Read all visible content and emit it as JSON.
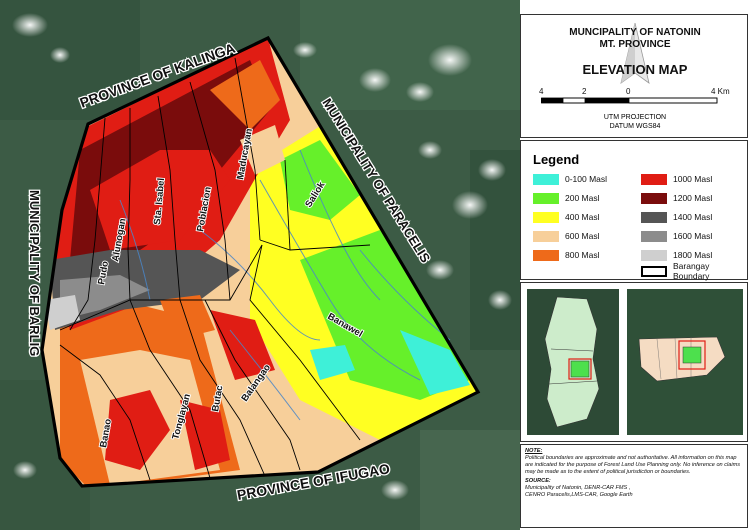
{
  "title": {
    "line1": "MUNCIPALITY OF NATONIN",
    "line2": "MT. PROVINCE",
    "line3": "ELEVATION MAP"
  },
  "scale": {
    "ticks": [
      "4",
      "2",
      "0",
      "4 Km"
    ],
    "projection": "UTM PROJECTION",
    "datum": "DATUM WGS84"
  },
  "legend": {
    "title": "Legend",
    "items": [
      {
        "label": "0-100 Masl",
        "color": "#3ef0d8"
      },
      {
        "label": "200 Masl",
        "color": "#66f02a"
      },
      {
        "label": "400 Masl",
        "color": "#ffff22"
      },
      {
        "label": "600 Masl",
        "color": "#f7cf9a"
      },
      {
        "label": "800 Masl",
        "color": "#ee6a1a"
      },
      {
        "label": "1000 Masl",
        "color": "#e01d14"
      },
      {
        "label": "1200 Masl",
        "color": "#7a0c0c"
      },
      {
        "label": "1400 Masl",
        "color": "#555555"
      },
      {
        "label": "1600 Masl",
        "color": "#8c8c8c"
      },
      {
        "label": "1800 Masl",
        "color": "#cfcfcf"
      },
      {
        "label": "Barangay Boundary",
        "color": "#ffffff"
      }
    ]
  },
  "map_labels": {
    "province_kalinga": "PROVINCE OF KALINGA",
    "municipality_paracelis": "MUNICIPALITY OF PARACELIS",
    "municipality_barlig": "MUNICIPALITY OF BARLIG",
    "province_ifugao": "PROVINCE OF IFUGAO",
    "barangays": [
      "Maducayan",
      "Poblacion",
      "Sta. Isabel",
      "Alunogan",
      "Pudo",
      "Saliok",
      "Banawel",
      "Balangao",
      "Butac",
      "Tonglayan",
      "Banao"
    ]
  },
  "note": {
    "heading": "NOTE:",
    "text": "Political boundaries are approximate and not authoritative. All information on this map are indicated for the purpose  of Forest Land Use Planning only. No inference on claims may be made as to the extent of political jurisdiction or boundaries.",
    "source_heading": "SOURCE:",
    "source_1": "Municipality of Natonin, DENR-CAR FMS ,",
    "source_2": "CENRO Paracelis,LMS-CAR, Google Earth"
  },
  "colors": {
    "satellite": "#3c5b45",
    "cloud": "#eef2f0",
    "boundary": "#000000",
    "stream": "#4a86c8"
  }
}
